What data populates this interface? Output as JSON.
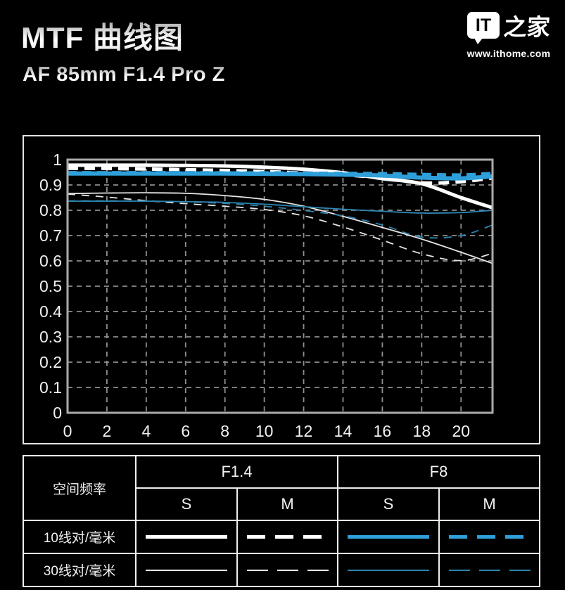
{
  "header": {
    "title": "MTF 曲线图",
    "subtitle": "AF 85mm F1.4 Pro Z",
    "logo": {
      "bubble_text": "IT",
      "brand_text": "之家",
      "url": "www.ithome.com"
    }
  },
  "colors": {
    "background": "#000000",
    "blue_thick": "#2E9FD8",
    "blue_thin": "#2C84AE",
    "white_thick": "#FFFFFF",
    "white_thin": "#E5E5E5",
    "grid": "#8F8F8F",
    "plot_border": "#ABABAB",
    "axis_text": "#F2F2F2"
  },
  "chart_data": {
    "type": "line",
    "title": "MTF 曲线图 — AF 85mm F1.4 Pro Z",
    "xlabel": "",
    "ylabel": "",
    "xlim": [
      0,
      21.6
    ],
    "ylim": [
      0,
      1
    ],
    "x_ticks": [
      0,
      2,
      4,
      6,
      8,
      10,
      12,
      14,
      16,
      18,
      20
    ],
    "y_tick_labels": [
      "0",
      "0.1",
      "0.2",
      "0.3",
      "0.4",
      "0.5",
      "0.6",
      "0.7",
      "0.8",
      "0.9",
      "1"
    ],
    "grid": "dashed",
    "legend_position": "table-below",
    "x": [
      0,
      2,
      4,
      6,
      8,
      10,
      12,
      14,
      16,
      18,
      20,
      21.6
    ],
    "series": [
      {
        "key": "f14-s-30",
        "name": "F1.4 S 30线对/毫米",
        "color": "#E5E5E5",
        "width": 1.8,
        "dash": null,
        "values": [
          0.866,
          0.868,
          0.869,
          0.867,
          0.858,
          0.843,
          0.816,
          0.776,
          0.732,
          0.686,
          0.634,
          0.59
        ]
      },
      {
        "key": "f14-m-30",
        "name": "F1.4 M 30线对/毫米",
        "color": "#E5E5E5",
        "width": 1.8,
        "dash": [
          11,
          9
        ],
        "values": [
          0.864,
          0.852,
          0.838,
          0.826,
          0.816,
          0.803,
          0.778,
          0.734,
          0.682,
          0.628,
          0.601,
          0.63
        ]
      },
      {
        "key": "f8-s-30",
        "name": "F8 S 30线对/毫米",
        "color": "#2C84AE",
        "width": 1.8,
        "dash": null,
        "values": [
          0.836,
          0.836,
          0.836,
          0.834,
          0.831,
          0.824,
          0.814,
          0.804,
          0.796,
          0.789,
          0.791,
          0.8
        ]
      },
      {
        "key": "f8-m-30",
        "name": "F8 M 30线对/毫米",
        "color": "#2C84AE",
        "width": 1.8,
        "dash": [
          11,
          9
        ],
        "values": [
          0.837,
          0.837,
          0.836,
          0.833,
          0.827,
          0.816,
          0.799,
          0.778,
          0.742,
          0.694,
          0.7,
          0.742
        ]
      },
      {
        "key": "f14-s-10",
        "name": "F1.4 S 10线对/毫米",
        "color": "#FFFFFF",
        "width": 5,
        "dash": null,
        "values": [
          0.978,
          0.978,
          0.978,
          0.977,
          0.975,
          0.97,
          0.962,
          0.948,
          0.925,
          0.905,
          0.85,
          0.81
        ]
      },
      {
        "key": "f14-m-10",
        "name": "F1.4 M 10线对/毫米",
        "color": "#FFFFFF",
        "width": 5,
        "dash": [
          15,
          9
        ],
        "values": [
          0.966,
          0.965,
          0.963,
          0.96,
          0.957,
          0.953,
          0.947,
          0.94,
          0.928,
          0.908,
          0.913,
          0.928
        ]
      },
      {
        "key": "f8-s-10",
        "name": "F8 S 10线对/毫米",
        "color": "#2E9FD8",
        "width": 6,
        "dash": null,
        "values": [
          0.945,
          0.945,
          0.945,
          0.945,
          0.945,
          0.944,
          0.943,
          0.941,
          0.937,
          0.929,
          0.926,
          0.934
        ]
      },
      {
        "key": "f8-m-10",
        "name": "F8 M 10线对/毫米",
        "color": "#2E9FD8",
        "width": 6,
        "dash": [
          13,
          8
        ],
        "values": [
          0.947,
          0.947,
          0.947,
          0.947,
          0.946,
          0.946,
          0.945,
          0.944,
          0.943,
          0.94,
          0.938,
          0.944
        ]
      }
    ]
  },
  "legend_table": {
    "corner_label": "空间频率",
    "groups": [
      {
        "label": "F1.4"
      },
      {
        "label": "F8"
      }
    ],
    "sub_headers": [
      "S",
      "M",
      "S",
      "M"
    ],
    "rows": [
      {
        "label": "10线对/毫米",
        "samples": [
          {
            "color": "#FFFFFF",
            "style": "solid",
            "weight": "thick"
          },
          {
            "color": "#FFFFFF",
            "style": "dashed",
            "weight": "thick"
          },
          {
            "color": "#2E9FD8",
            "style": "solid",
            "weight": "thick"
          },
          {
            "color": "#2E9FD8",
            "style": "dashed",
            "weight": "thick"
          }
        ]
      },
      {
        "label": "30线对/毫米",
        "samples": [
          {
            "color": "#E5E5E5",
            "style": "solid",
            "weight": "thin"
          },
          {
            "color": "#E5E5E5",
            "style": "dashed",
            "weight": "thin"
          },
          {
            "color": "#2C84AE",
            "style": "solid",
            "weight": "thin"
          },
          {
            "color": "#2C84AE",
            "style": "dashed",
            "weight": "thin"
          }
        ]
      }
    ]
  }
}
